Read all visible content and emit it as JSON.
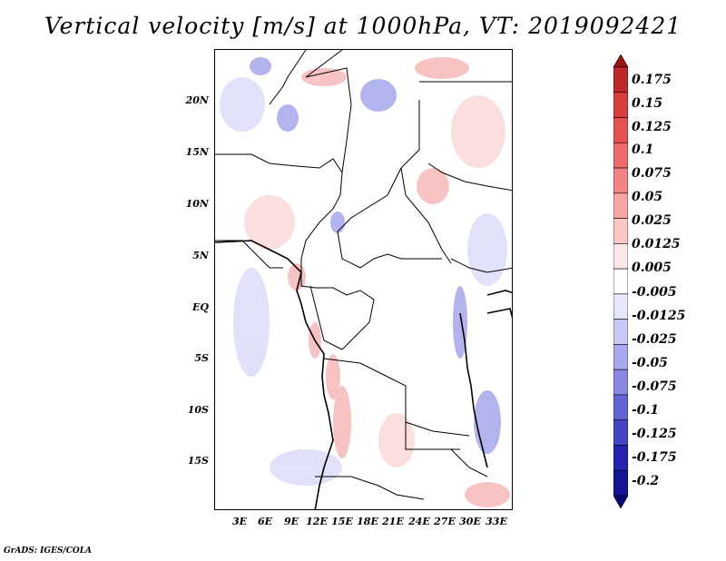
{
  "title": "Vertical velocity [m/s] at 1000hPa, VT: 2019092421",
  "footer": "GrADS: IGES/COLA",
  "lat_labels": [
    "20N",
    "15N",
    "10N",
    "5N",
    "EQ",
    "5S",
    "10S",
    "15S"
  ],
  "lon_labels": [
    "3E",
    "6E",
    "9E",
    "12E",
    "15E",
    "18E",
    "21E",
    "24E",
    "27E",
    "30E",
    "33E"
  ],
  "colorbar": {
    "labels": [
      "0.175",
      "0.15",
      "0.125",
      "0.1",
      "0.075",
      "0.05",
      "0.025",
      "0.0125",
      "0.005",
      "-0.005",
      "-0.0125",
      "-0.025",
      "-0.05",
      "-0.075",
      "-0.1",
      "-0.125",
      "-0.175",
      "-0.2"
    ],
    "colors": [
      "#a01414",
      "#c0282a",
      "#d83c3c",
      "#e85050",
      "#ee6a6a",
      "#f28484",
      "#f6a4a4",
      "#fac6c6",
      "#fde6e6",
      "#ffffff",
      "#e6e6fc",
      "#c8c8f6",
      "#a8a8ee",
      "#8888e2",
      "#6464d6",
      "#4444c6",
      "#2424b0",
      "#141496",
      "#0a0a78"
    ]
  }
}
